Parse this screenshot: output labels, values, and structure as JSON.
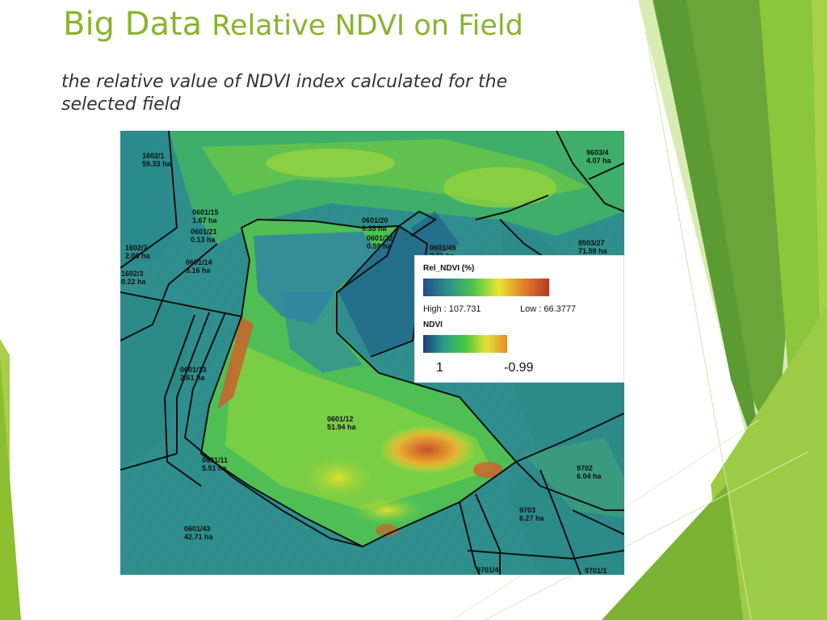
{
  "slide": {
    "title_main": "Big Data",
    "title_rest": "Relative NDVI on Field",
    "subtitle": "the relative value of NDVI index calculated for the selected field",
    "accent_color": "#89b42f"
  },
  "map": {
    "field_plots": [
      {
        "id": "1602/1",
        "area": "59.33 ha"
      },
      {
        "id": "9603/4",
        "area": "4.07 ha"
      },
      {
        "id": "0601/15",
        "area": "1.67 ha"
      },
      {
        "id": "0601/21",
        "area": "0.13 ha"
      },
      {
        "id": "1602/7",
        "area": "2.06 ha"
      },
      {
        "id": "0601/14",
        "area": "3.16 ha"
      },
      {
        "id": "1602/3",
        "area": "0.22 ha"
      },
      {
        "id": "0601/20",
        "area": "0.33 ha"
      },
      {
        "id": "0601/22",
        "area": "0.59 ha"
      },
      {
        "id": "0601/49",
        "area": "3.41 ha"
      },
      {
        "id": "9503/27",
        "area": "71.59 ha"
      },
      {
        "id": "0601/13",
        "area": "2.61 ha"
      },
      {
        "id": "0601/12",
        "area": "51.94 ha"
      },
      {
        "id": "0601/11",
        "area": "5.51 ha"
      },
      {
        "id": "9702",
        "area": "6.04 ha"
      },
      {
        "id": "9703",
        "area": "6.27 ha"
      },
      {
        "id": "0601/43",
        "area": "42.71 ha"
      },
      {
        "id": "9701/4",
        "area": ""
      },
      {
        "id": "9701/1",
        "area": ""
      }
    ],
    "legend": {
      "rel_title": "Rel_NDVI (%)",
      "high_label": "High : 107.731",
      "low_label": "Low : 66.3777",
      "ndvi_title": "NDVI",
      "ndvi_high": "1",
      "ndvi_low": "-0.99",
      "rel_ramp_colors": [
        "#1f4f8a",
        "#2d8f8c",
        "#4fc64a",
        "#e8e632",
        "#e0802a",
        "#b43a22"
      ],
      "ndvi_ramp_colors": [
        "#1c3f7a",
        "#2c9c8c",
        "#46c83c",
        "#e2e23a",
        "#e88a2a"
      ]
    }
  }
}
